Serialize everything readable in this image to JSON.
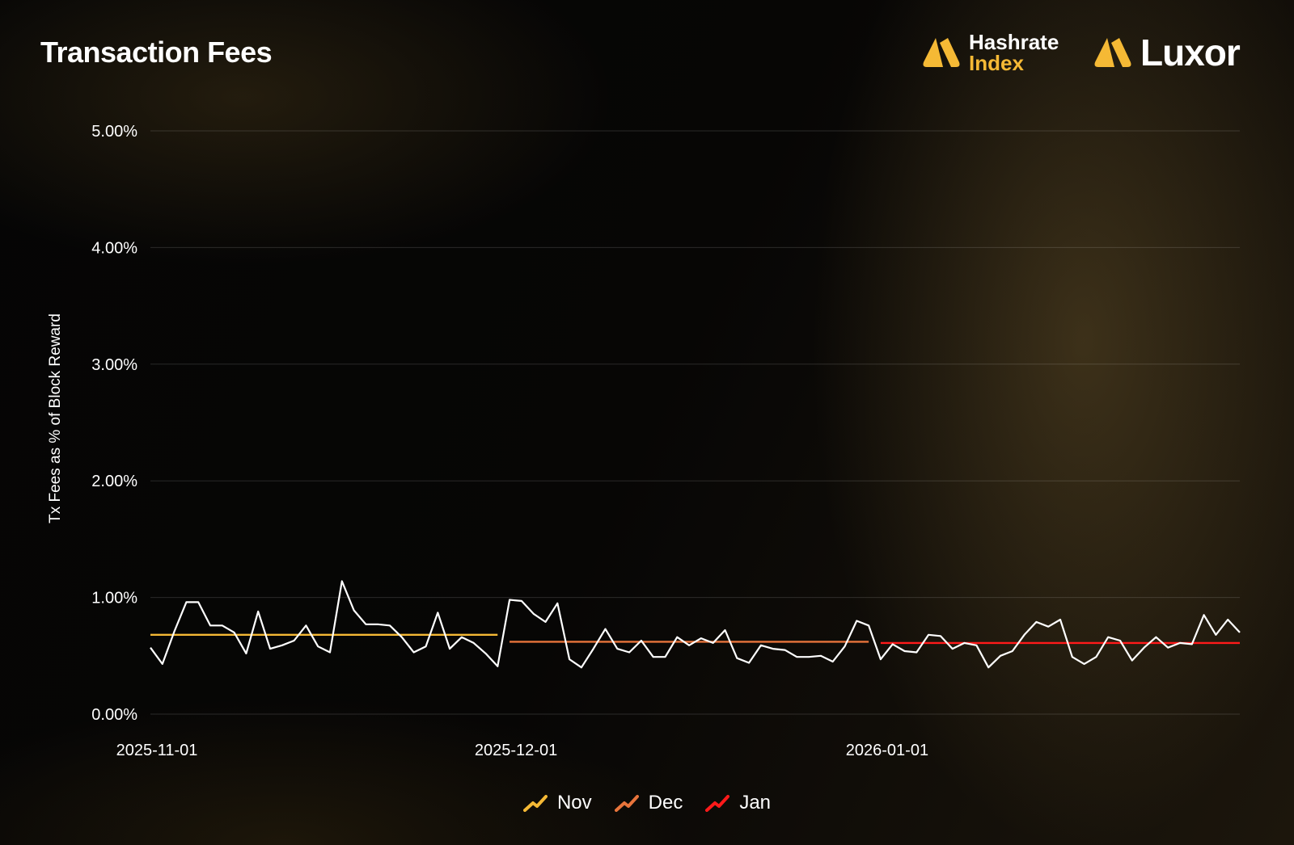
{
  "page": {
    "title": "Transaction Fees",
    "brand_hashrate_line1": "Hashrate",
    "brand_hashrate_line2": "Index",
    "brand_luxor": "Luxor",
    "accent_color": "#f5b935"
  },
  "chart_data": {
    "type": "line",
    "title": "Transaction Fees",
    "xlabel": "",
    "ylabel": "Tx Fees as % of Block Reward",
    "ylim": [
      0,
      5
    ],
    "yticks": [
      0,
      1,
      2,
      3,
      4,
      5
    ],
    "ytick_labels": [
      "0.00%",
      "1.00%",
      "2.00%",
      "3.00%",
      "4.00%",
      "5.00%"
    ],
    "xtick_labels": [
      "2025-11-01",
      "2025-12-01",
      "2026-01-01"
    ],
    "x_start": "2025-11-01",
    "x_end": "2026-01-31",
    "grid": true,
    "legend_placement": "bottom-center",
    "series": [
      {
        "name": "",
        "color": "#ffffff",
        "values": [
          0.57,
          0.43,
          0.71,
          0.96,
          0.96,
          0.76,
          0.76,
          0.7,
          0.52,
          0.88,
          0.56,
          0.59,
          0.63,
          0.76,
          0.58,
          0.53,
          1.14,
          0.89,
          0.77,
          0.77,
          0.76,
          0.66,
          0.53,
          0.58,
          0.87,
          0.56,
          0.66,
          0.61,
          0.52,
          0.41,
          0.98,
          0.97,
          0.86,
          0.79,
          0.95,
          0.47,
          0.4,
          0.56,
          0.73,
          0.56,
          0.53,
          0.63,
          0.49,
          0.49,
          0.66,
          0.59,
          0.65,
          0.61,
          0.72,
          0.48,
          0.44,
          0.59,
          0.56,
          0.55,
          0.49,
          0.49,
          0.5,
          0.45,
          0.58,
          0.8,
          0.76,
          0.47,
          0.6,
          0.54,
          0.53,
          0.68,
          0.67,
          0.56,
          0.61,
          0.59,
          0.4,
          0.5,
          0.54,
          0.68,
          0.79,
          0.75,
          0.81,
          0.49,
          0.43,
          0.49,
          0.66,
          0.63,
          0.46,
          0.57,
          0.66,
          0.57,
          0.61,
          0.6,
          0.85,
          0.68,
          0.81,
          0.7
        ]
      }
    ],
    "monthly_averages": [
      {
        "name": "Nov",
        "color": "#f5b935",
        "value": 0.68,
        "start": "2025-11-01",
        "end": "2025-11-30"
      },
      {
        "name": "Dec",
        "color": "#e8743b",
        "value": 0.62,
        "start": "2025-12-01",
        "end": "2025-12-31"
      },
      {
        "name": "Jan",
        "color": "#ff1a1a",
        "value": 0.61,
        "start": "2026-01-01",
        "end": "2026-01-31"
      }
    ]
  }
}
